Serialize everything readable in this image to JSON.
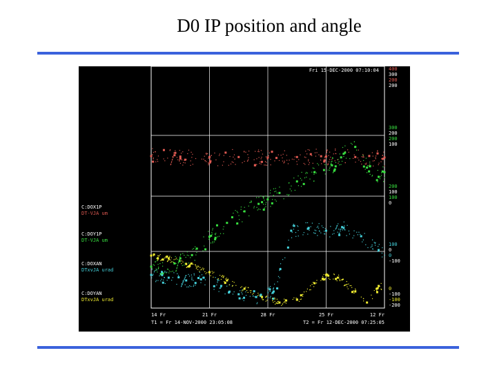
{
  "slide": {
    "title": "D0 IP position and angle",
    "rule_color": "#3b62dc"
  },
  "chart_data": {
    "type": "scatter",
    "timestamp": "Fri 15-DEC-2000 07:10:04",
    "x_tick_labels": [
      "14 Fr",
      "21 Fr",
      "28 Fr",
      "25 Fr",
      "12 Fr"
    ],
    "t1_label": "T1 = Fr 14-NOV-2000 23:05:08",
    "t2_label": "T2 = Fr 12-DEC-2000 07:25:05",
    "bands": [
      {
        "name": "C:DOX1P",
        "sub": "DT-VJA um",
        "color": "#e05a52",
        "ticks": [
          "400",
          "300",
          "200",
          "200"
        ]
      },
      {
        "name": "C:DOY1P",
        "sub": "DT-VJA um",
        "color": "#38e040",
        "ticks": [
          "300",
          "200",
          "200",
          "100",
          "200",
          "100",
          "100",
          "0"
        ]
      },
      {
        "name": "C:DOXAN",
        "sub": "DTxvJA urad",
        "color": "#45d2dc",
        "ticks": [
          "100",
          "0",
          "0",
          "-100"
        ]
      },
      {
        "name": "C:DOYAN",
        "sub": "DTxvJA urad",
        "color": "#f0ec30",
        "ticks": [
          "0",
          "-100",
          "-100",
          "-200"
        ]
      }
    ],
    "series": [
      {
        "name": "C:DOX1P",
        "color": "#e05a52",
        "x": [
          0,
          0.5,
          1,
          1.5,
          2,
          2.5,
          3,
          3.5,
          4
        ],
        "y": [
          205,
          204,
          203,
          203,
          202,
          203,
          204,
          203,
          202
        ],
        "ylim": [
          100,
          400
        ]
      },
      {
        "name": "C:DOY1P",
        "color": "#38e040",
        "x": [
          0,
          0.4,
          0.7,
          1.0,
          1.3,
          1.6,
          1.9,
          2.2,
          2.5,
          2.8,
          3.1,
          3.3,
          3.5,
          3.7,
          3.9,
          4
        ],
        "y": [
          15,
          22,
          40,
          80,
          110,
          135,
          155,
          175,
          200,
          220,
          235,
          260,
          275,
          230,
          210,
          220
        ],
        "ylim": [
          0,
          300
        ]
      },
      {
        "name": "C:DOXAN",
        "color": "#45d2dc",
        "x": [
          0,
          0.3,
          0.6,
          0.9,
          1.2,
          1.5,
          1.8,
          2.1,
          2.4,
          2.7,
          3.0,
          3.3,
          3.6,
          3.9
        ],
        "y": [
          -40,
          -45,
          -50,
          -45,
          -60,
          -75,
          -80,
          -70,
          40,
          45,
          40,
          45,
          30,
          5
        ],
        "ylim": [
          -100,
          100
        ]
      },
      {
        "name": "C:DOYAN",
        "color": "#f0ec30",
        "x": [
          0,
          0.3,
          0.6,
          1.0,
          1.3,
          1.6,
          1.9,
          2.2,
          2.5,
          2.8,
          3.0,
          3.2,
          3.5,
          3.7,
          3.9
        ],
        "y": [
          -5,
          -10,
          -20,
          -35,
          -50,
          -65,
          -80,
          -90,
          -85,
          -55,
          -40,
          -45,
          -70,
          -90,
          -60
        ],
        "ylim": [
          -100,
          0
        ]
      }
    ],
    "xlim": [
      0,
      4
    ],
    "grid": true
  }
}
